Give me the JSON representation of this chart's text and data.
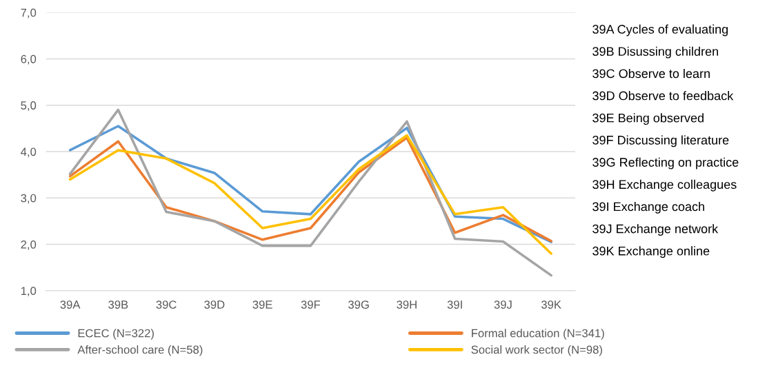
{
  "chart_data": {
    "type": "line",
    "categories": [
      "39A",
      "39B",
      "39C",
      "39D",
      "39E",
      "39F",
      "39G",
      "39H",
      "39I",
      "39J",
      "39K"
    ],
    "series": [
      {
        "name": "ECEC (N=322)",
        "color": "#5b9bd5",
        "values": [
          4.03,
          4.55,
          3.85,
          3.54,
          2.71,
          2.65,
          3.78,
          4.51,
          2.6,
          2.55,
          2.05
        ]
      },
      {
        "name": "Formal education (N=341)",
        "color": "#ed7d31",
        "values": [
          3.47,
          4.22,
          2.8,
          2.5,
          2.1,
          2.35,
          3.55,
          4.3,
          2.25,
          2.63,
          2.07
        ]
      },
      {
        "name": "After-school care (N=58)",
        "color": "#a5a5a5",
        "values": [
          3.52,
          4.9,
          2.7,
          2.5,
          1.97,
          1.97,
          3.35,
          4.65,
          2.12,
          2.06,
          1.33
        ]
      },
      {
        "name": "Social work sector (N=98)",
        "color": "#ffc000",
        "values": [
          3.4,
          4.03,
          3.85,
          3.32,
          2.35,
          2.55,
          3.62,
          4.35,
          2.65,
          2.8,
          1.8
        ]
      }
    ],
    "ylim": [
      1,
      7
    ],
    "yticks": [
      {
        "value": 1,
        "label": "1,0"
      },
      {
        "value": 2,
        "label": "2,0"
      },
      {
        "value": 3,
        "label": "3,0"
      },
      {
        "value": 4,
        "label": "4,0"
      },
      {
        "value": 5,
        "label": "5,0"
      },
      {
        "value": 6,
        "label": "6,0"
      },
      {
        "value": 7,
        "label": "7,0"
      }
    ],
    "grid": "y",
    "legend": "bottom",
    "marker": "none",
    "line_style": "solid",
    "annotations": [
      "39A Cycles of evaluating",
      "39B Disussing children",
      "39C Observe to learn",
      "39D Observe to feedback",
      "39E Being observed",
      "39F Discussing literature",
      "39G Reflecting on practice",
      "39H Exchange colleagues",
      "39I Exchange coach",
      "39J Exchange network",
      "39K Exchange online"
    ]
  }
}
